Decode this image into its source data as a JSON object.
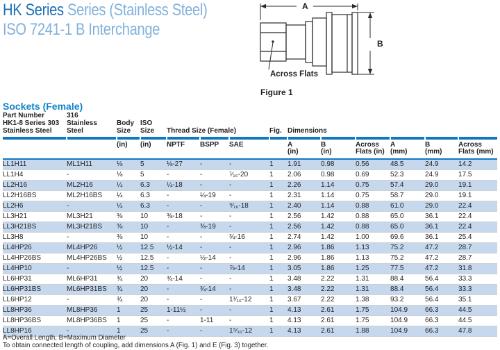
{
  "title": {
    "series_dark": "HK Series",
    "series_light": " Series (Stainless Steel)",
    "line2": "ISO 7241-1 B Interchange"
  },
  "section_heading": "Sockets (Female)",
  "figure": {
    "caption": "Figure 1",
    "label_a": "A",
    "label_b": "B",
    "label_across_flats": "Across Flats"
  },
  "table": {
    "part_number_label": "Part Number",
    "group_headers": {
      "col303_l1": "HK1-8 Series 303",
      "col303_l2": "Stainless Steel",
      "col316_l1": "316",
      "col316_l2": "Stainless Steel",
      "body_l1": "Body",
      "body_l2": "Size",
      "iso_l1": "ISO",
      "iso_l2": "Size",
      "thread": "Thread Size (Female)",
      "fig": "Fig.",
      "dimensions": "Dimensions"
    },
    "sub_headers": [
      [
        ""
      ],
      [
        ""
      ],
      [
        "(in)"
      ],
      [
        "(in)"
      ],
      [
        "NPTF"
      ],
      [
        "BSPP"
      ],
      [
        "SAE"
      ],
      [
        ""
      ],
      [
        "A",
        "(in)"
      ],
      [
        "B",
        "(in)"
      ],
      [
        "Across",
        "Flats (in)"
      ],
      [
        "A",
        "(mm)"
      ],
      [
        "B",
        "(mm)"
      ],
      [
        "Across",
        "Flats (mm)"
      ]
    ],
    "rows": [
      [
        "LL1H11",
        "ML1H11",
        "⅛",
        "5",
        "⅛-27",
        "-",
        "-",
        "1",
        "1.91",
        "0.98",
        "0.56",
        "48.5",
        "24.9",
        "14.2"
      ],
      [
        "LL1H4",
        "-",
        "⅛",
        "5",
        "-",
        "-",
        "⁷⁄₁₆-20",
        "1",
        "2.06",
        "0.98",
        "0.69",
        "52.3",
        "24.9",
        "17.5"
      ],
      [
        "LL2H16",
        "ML2H16",
        "¼",
        "6.3",
        "¼-18",
        "-",
        "-",
        "1",
        "2.26",
        "1.14",
        "0.75",
        "57.4",
        "29.0",
        "19.1"
      ],
      [
        "LL2H16BS",
        "ML2H16BS",
        "¼",
        "6.3",
        "-",
        "¼-19",
        "-",
        "1",
        "2.31",
        "1.14",
        "0.75",
        "58.7",
        "29.0",
        "19.1"
      ],
      [
        "LL2H6",
        "-",
        "¼",
        "6.3",
        "-",
        "-",
        "⁹⁄₁₆-18",
        "1",
        "2.40",
        "1.14",
        "0.88",
        "61.0",
        "29.0",
        "22.4"
      ],
      [
        "LL3H21",
        "ML3H21",
        "⅜",
        "10",
        "⅜-18",
        "-",
        "-",
        "1",
        "2.56",
        "1.42",
        "0.88",
        "65.0",
        "36.1",
        "22.4"
      ],
      [
        "LL3H21BS",
        "ML3H21BS",
        "⅜",
        "10",
        "-",
        "⅜-19",
        "-",
        "1",
        "2.56",
        "1.42",
        "0.88",
        "65.0",
        "36.1",
        "22.4"
      ],
      [
        "LL3H8",
        "-",
        "⅜",
        "10",
        "-",
        "-",
        "¾-16",
        "1",
        "2.74",
        "1.42",
        "1.00",
        "69.6",
        "36.1",
        "25.4"
      ],
      [
        "LL4HP26",
        "ML4HP26",
        "½",
        "12.5",
        "½-14",
        "-",
        "-",
        "1",
        "2.96",
        "1.86",
        "1.13",
        "75.2",
        "47.2",
        "28.7"
      ],
      [
        "LL4HP26BS",
        "ML4HP26BS",
        "½",
        "12.5",
        "-",
        "½-14",
        "-",
        "1",
        "2.96",
        "1.86",
        "1.13",
        "75.2",
        "47.2",
        "28.7"
      ],
      [
        "LL4HP10",
        "-",
        "½",
        "12.5",
        "-",
        "-",
        "⅞-14",
        "1",
        "3.05",
        "1.86",
        "1.25",
        "77.5",
        "47.2",
        "31.8"
      ],
      [
        "LL6HP31",
        "ML6HP31",
        "¾",
        "20",
        "¾-14",
        "-",
        "-",
        "1",
        "3.48",
        "2.22",
        "1.31",
        "88.4",
        "56.4",
        "33.3"
      ],
      [
        "LL6HP31BS",
        "ML6HP31BS",
        "¾",
        "20",
        "-",
        "¾-14",
        "-",
        "1",
        "3.48",
        "2.22",
        "1.31",
        "88.4",
        "56.4",
        "33.3"
      ],
      [
        "LL6HP12",
        "-",
        "¾",
        "20",
        "-",
        "-",
        "1¹⁄₁₆-12",
        "1",
        "3.67",
        "2.22",
        "1.38",
        "93.2",
        "56.4",
        "35.1"
      ],
      [
        "LL8HP36",
        "ML8HP36",
        "1",
        "25",
        "1-11½",
        "-",
        "-",
        "1",
        "4.13",
        "2.61",
        "1.75",
        "104.9",
        "66.3",
        "44.5"
      ],
      [
        "LL8HP36BS",
        "ML8HP36BS",
        "1",
        "25",
        "-",
        "1-11",
        "-",
        "1",
        "4.13",
        "2.61",
        "1.75",
        "104.9",
        "66.3",
        "44.5"
      ],
      [
        "LL8HP16",
        "-",
        "1",
        "25",
        "-",
        "-",
        "1⁵⁄₁₆-12",
        "1",
        "4.13",
        "2.61",
        "1.88",
        "104.9",
        "66.3",
        "47.8"
      ]
    ]
  },
  "footnotes": [
    "A=Overall Length, B=Maximum Diameter",
    "To obtain connected length of coupling, add dimensions A (Fig. 1) and E (Fig. 3)  together."
  ],
  "colors": {
    "title_dark_blue": "#1c6fb5",
    "title_light_blue": "#82b1dc",
    "heading_blue": "#1283c9",
    "rule_blue": "#1278be",
    "row_stripe_blue": "#c5d8ee"
  }
}
